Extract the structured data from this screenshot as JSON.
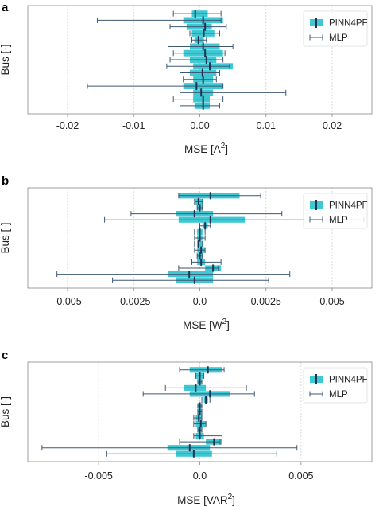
{
  "legend": {
    "series1": "PINN4PF",
    "series2": "MLP"
  },
  "colors": {
    "bar": "#3ec8d4",
    "whisker": "#3e5874",
    "grid": "#cfcfcf",
    "spine": "#888888",
    "median": "#1d3550"
  },
  "chart_data": [
    {
      "type": "errorbar",
      "panel": "a",
      "ylabel": "Bus [-]",
      "xlabel_text": "MSE [A",
      "xlabel_sup": "2",
      "xlabel_close": "]",
      "xlim": [
        -0.026,
        0.026
      ],
      "xticks": [
        -0.02,
        -0.01,
        0.0,
        0.01,
        0.02
      ],
      "xtick_labels": [
        "-0.02",
        "-0.01",
        "0.00",
        "0.01",
        "0.02"
      ],
      "grid": true,
      "legend_position": "top-right",
      "rows": [
        {
          "bar": [
            -0.0012,
            0.0012
          ],
          "center": -0.0007,
          "whisker": [
            -0.004,
            0.0032
          ]
        },
        {
          "bar": [
            -0.0025,
            0.0035
          ],
          "center": 0.0005,
          "whisker": [
            -0.0155,
            0.0032
          ]
        },
        {
          "bar": [
            -0.002,
            0.0018
          ],
          "center": 0.0008,
          "whisker": [
            -0.0045,
            0.004
          ]
        },
        {
          "bar": [
            -0.0012,
            0.0022
          ],
          "center": 0.0006,
          "whisker": [
            -0.0015,
            0.003
          ]
        },
        {
          "bar": [
            -0.0008,
            0.0006
          ],
          "center": -0.0002,
          "whisker": [
            -0.0012,
            0.001
          ]
        },
        {
          "bar": [
            -0.0015,
            0.003
          ],
          "center": 0.0005,
          "whisker": [
            -0.0048,
            0.005
          ]
        },
        {
          "bar": [
            -0.0025,
            0.0035
          ],
          "center": 0.0008,
          "whisker": [
            -0.004,
            0.0038
          ]
        },
        {
          "bar": [
            -0.0015,
            0.0025
          ],
          "center": 0.001,
          "whisker": [
            -0.0045,
            0.0035
          ]
        },
        {
          "bar": [
            -0.001,
            0.005
          ],
          "center": 0.0015,
          "whisker": [
            -0.005,
            0.0045
          ]
        },
        {
          "bar": [
            -0.0015,
            0.0025
          ],
          "center": 0.0004,
          "whisker": [
            -0.003,
            0.003
          ]
        },
        {
          "bar": [
            -0.001,
            0.002
          ],
          "center": 0.0005,
          "whisker": [
            -0.0025,
            0.0025
          ]
        },
        {
          "bar": [
            -0.0025,
            0.0035
          ],
          "center": -0.0005,
          "whisker": [
            -0.017,
            0.0035
          ]
        },
        {
          "bar": [
            -0.001,
            0.002
          ],
          "center": 0.0002,
          "whisker": [
            -0.003,
            0.013
          ]
        },
        {
          "bar": [
            -0.001,
            0.0015
          ],
          "center": 0.0005,
          "whisker": [
            -0.004,
            0.0035
          ]
        },
        {
          "bar": [
            -0.0008,
            0.0015
          ],
          "center": 0.0005,
          "whisker": [
            -0.003,
            0.003
          ]
        }
      ]
    },
    {
      "type": "errorbar",
      "panel": "b",
      "ylabel": "Bus [-]",
      "xlabel_text": "MSE [W",
      "xlabel_sup": "2",
      "xlabel_close": "]",
      "xlim": [
        -0.0065,
        0.0065
      ],
      "xticks": [
        -0.005,
        -0.0025,
        0.0,
        0.0025,
        0.005
      ],
      "xtick_labels": [
        "-0.005",
        "-0.0025",
        "0.0",
        "0.0025",
        "0.005"
      ],
      "grid": true,
      "legend_position": "top-right",
      "rows": [
        {
          "bar": [
            -0.0008,
            0.0015
          ],
          "center": 0.0004,
          "whisker": [
            -0.0008,
            0.0023
          ]
        },
        {
          "bar": [
            -0.0002,
            0.0001
          ],
          "center": -5e-05,
          "whisker": [
            -0.0002,
            0.0001
          ]
        },
        {
          "bar": [
            -0.0001,
            0.0001
          ],
          "center": 0.0,
          "whisker": [
            -0.0001,
            0.0001
          ]
        },
        {
          "bar": [
            -0.0009,
            0.0005
          ],
          "center": -0.0002,
          "whisker": [
            -0.0026,
            0.0031
          ]
        },
        {
          "bar": [
            -0.0008,
            0.0017
          ],
          "center": 0.0004,
          "whisker": [
            -0.0036,
            0.0062
          ]
        },
        {
          "bar": [
            0.0001,
            0.0003
          ],
          "center": 0.0002,
          "whisker": [
            0.0,
            0.0004
          ]
        },
        {
          "bar": [
            -0.0001,
            0.0001
          ],
          "center": 0.0,
          "whisker": [
            -0.0002,
            0.0002
          ]
        },
        {
          "bar": [
            -0.0001,
            0.0001
          ],
          "center": 0.0,
          "whisker": [
            -0.0002,
            0.0002
          ]
        },
        {
          "bar": [
            -0.0001,
            0.0001
          ],
          "center": -5e-05,
          "whisker": [
            -0.0002,
            0.0001
          ]
        },
        {
          "bar": [
            -0.0001,
            0.0002
          ],
          "center": 5e-05,
          "whisker": [
            -0.0002,
            0.0002
          ]
        },
        {
          "bar": [
            -0.0001,
            0.0001
          ],
          "center": 0.0,
          "whisker": [
            -0.0001,
            0.0001
          ]
        },
        {
          "bar": [
            -0.0001,
            0.0002
          ],
          "center": 5e-05,
          "whisker": [
            -0.0003,
            0.0008
          ]
        },
        {
          "bar": [
            0.0002,
            0.0008
          ],
          "center": 0.0005,
          "whisker": [
            -0.0008,
            0.0007
          ]
        },
        {
          "bar": [
            -0.0012,
            0.0005
          ],
          "center": -0.0004,
          "whisker": [
            -0.0054,
            0.0034
          ]
        },
        {
          "bar": [
            -0.0009,
            0.0005
          ],
          "center": -0.0002,
          "whisker": [
            -0.0033,
            0.0026
          ]
        }
      ]
    },
    {
      "type": "errorbar",
      "panel": "c",
      "ylabel": "Bus [-]",
      "xlabel_text": "MSE [VAR",
      "xlabel_sup": "2",
      "xlabel_close": "]",
      "xlim": [
        -0.0085,
        0.0085
      ],
      "xticks": [
        -0.005,
        0.0,
        0.005
      ],
      "xtick_labels": [
        "-0.005",
        "0.0",
        "0.005"
      ],
      "grid": true,
      "legend_position": "top-right",
      "rows": [
        {
          "bar": [
            -0.0005,
            0.0011
          ],
          "center": 0.0004,
          "whisker": [
            -0.001,
            0.0012
          ]
        },
        {
          "bar": [
            -0.0002,
            0.0002
          ],
          "center": 0.0,
          "whisker": [
            -0.0002,
            0.0002
          ]
        },
        {
          "bar": [
            -0.0001,
            0.0001
          ],
          "center": 0.0,
          "whisker": [
            -0.0001,
            0.0001
          ]
        },
        {
          "bar": [
            -0.0008,
            0.0003
          ],
          "center": -0.0002,
          "whisker": [
            -0.0017,
            0.0023
          ]
        },
        {
          "bar": [
            -0.0005,
            0.0015
          ],
          "center": 0.0005,
          "whisker": [
            -0.0028,
            0.0027
          ]
        },
        {
          "bar": [
            0.0002,
            0.0004
          ],
          "center": 0.0003,
          "whisker": [
            0.0001,
            0.0005
          ]
        },
        {
          "bar": [
            -0.0001,
            0.0001
          ],
          "center": 0.0,
          "whisker": [
            -0.0001,
            0.0001
          ]
        },
        {
          "bar": [
            -0.0001,
            0.0001
          ],
          "center": 0.0,
          "whisker": [
            -0.0001,
            0.0001
          ]
        },
        {
          "bar": [
            -0.0002,
            0.0001
          ],
          "center": -5e-05,
          "whisker": [
            -0.0003,
            0.0001
          ]
        },
        {
          "bar": [
            -0.0002,
            0.0003
          ],
          "center": 5e-05,
          "whisker": [
            -0.0003,
            0.0003
          ]
        },
        {
          "bar": [
            -0.0001,
            0.0001
          ],
          "center": 0.0,
          "whisker": [
            -0.0001,
            0.0001
          ]
        },
        {
          "bar": [
            -0.0002,
            0.0002
          ],
          "center": 0.0,
          "whisker": [
            -0.0003,
            0.0011
          ]
        },
        {
          "bar": [
            0.0003,
            0.0011
          ],
          "center": 0.0007,
          "whisker": [
            -0.001,
            0.001
          ]
        },
        {
          "bar": [
            -0.0016,
            0.0005
          ],
          "center": -0.0005,
          "whisker": [
            -0.0078,
            0.0048
          ]
        },
        {
          "bar": [
            -0.0012,
            0.0006
          ],
          "center": -0.0003,
          "whisker": [
            -0.0046,
            0.0038
          ]
        }
      ]
    }
  ]
}
